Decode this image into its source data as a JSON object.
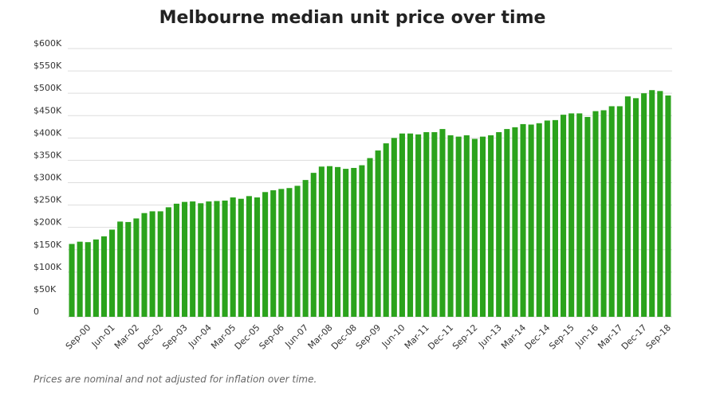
{
  "chart_data": {
    "type": "bar",
    "title": "Melbourne median unit price over time",
    "footnote": "Prices are nominal and not adjusted for inflation over time.",
    "color": "#2ba31c",
    "grid": true,
    "ylim": [
      0,
      600000
    ],
    "yticks": [
      0,
      {
        "value": 50000,
        "label": "$50K"
      },
      {
        "value": 100000,
        "label": "$100K"
      },
      {
        "value": 150000,
        "label": "$150K"
      },
      {
        "value": 200000,
        "label": "$200K"
      },
      {
        "value": 250000,
        "label": "$250K"
      },
      {
        "value": 300000,
        "label": "$300K"
      },
      {
        "value": 350000,
        "label": "$350K"
      },
      {
        "value": 400000,
        "label": "$400K"
      },
      {
        "value": 450000,
        "label": "$450K"
      },
      {
        "value": 500000,
        "label": "$500K"
      },
      {
        "value": 550000,
        "label": "$550K"
      },
      {
        "value": 600000,
        "label": "$600K"
      }
    ],
    "categories": [
      null,
      "Sep-00",
      null,
      null,
      "Jun-01",
      null,
      null,
      "Mar-02",
      null,
      null,
      "Dec-02",
      null,
      null,
      "Sep-03",
      null,
      null,
      "Jun-04",
      null,
      null,
      "Mar-05",
      null,
      null,
      "Dec-05",
      null,
      null,
      "Sep-06",
      null,
      null,
      "Jun-07",
      null,
      null,
      "Mar-08",
      null,
      null,
      "Dec-08",
      null,
      null,
      "Sep-09",
      null,
      null,
      "Jun-10",
      null,
      null,
      "Mar-11",
      null,
      null,
      "Dec-11",
      null,
      null,
      "Sep-12",
      null,
      null,
      "Jun-13",
      null,
      null,
      "Mar-14",
      null,
      null,
      "Dec-14",
      null,
      null,
      "Sep-15",
      null,
      null,
      "Jun-16",
      null,
      null,
      "Mar-17",
      null,
      null,
      "Dec-17",
      null,
      null,
      "Sep-18",
      null
    ],
    "values": [
      163000,
      168000,
      167000,
      173000,
      180000,
      195000,
      213000,
      212000,
      220000,
      232000,
      236000,
      236000,
      245000,
      253000,
      257000,
      258000,
      254000,
      258000,
      259000,
      260000,
      267000,
      264000,
      270000,
      267000,
      279000,
      283000,
      286000,
      288000,
      293000,
      306000,
      322000,
      336000,
      337000,
      335000,
      331000,
      333000,
      339000,
      355000,
      372000,
      388000,
      400000,
      410000,
      410000,
      408000,
      413000,
      413000,
      420000,
      406000,
      403000,
      406000,
      398000,
      403000,
      406000,
      413000,
      420000,
      424000,
      431000,
      430000,
      433000,
      439000,
      440000,
      452000,
      455000,
      455000,
      447000,
      460000,
      462000,
      471000,
      471000,
      493000,
      489000,
      500000,
      507000,
      505000,
      495000
    ]
  }
}
